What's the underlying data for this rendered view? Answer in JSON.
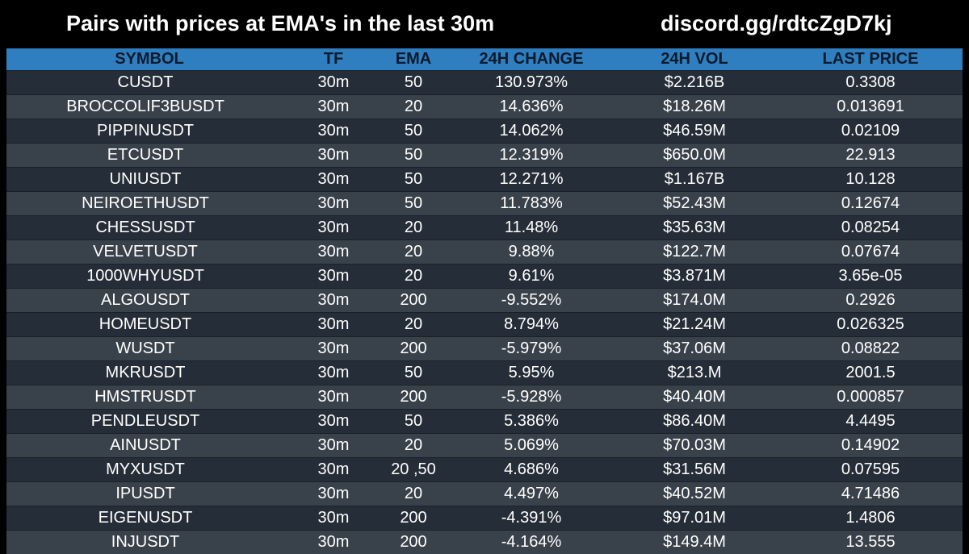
{
  "header": {
    "title": "Pairs with prices at EMA's in the last 30m",
    "link": "discord.gg/rdtcZgD7kj"
  },
  "colors": {
    "background": "#000000",
    "header_row": "#2f7fc0",
    "row_dark": "#252e38",
    "row_light": "#39424b",
    "text": "#ffffff"
  },
  "table": {
    "columns": [
      "SYMBOL",
      "TF",
      "EMA",
      "24H CHANGE",
      "24H VOL",
      "LAST PRICE"
    ],
    "rows": [
      [
        "CUSDT",
        "30m",
        "50",
        "130.973%",
        "$2.216B",
        "0.3308"
      ],
      [
        "BROCCOLIF3BUSDT",
        "30m",
        "20",
        "14.636%",
        "$18.26M",
        "0.013691"
      ],
      [
        "PIPPINUSDT",
        "30m",
        "50",
        "14.062%",
        "$46.59M",
        "0.02109"
      ],
      [
        "ETCUSDT",
        "30m",
        "50",
        "12.319%",
        "$650.0M",
        "22.913"
      ],
      [
        "UNIUSDT",
        "30m",
        "50",
        "12.271%",
        "$1.167B",
        "10.128"
      ],
      [
        "NEIROETHUSDT",
        "30m",
        "50",
        "11.783%",
        "$52.43M",
        "0.12674"
      ],
      [
        "CHESSUSDT",
        "30m",
        "20",
        "11.48%",
        "$35.63M",
        "0.08254"
      ],
      [
        "VELVETUSDT",
        "30m",
        "20",
        "9.88%",
        "$122.7M",
        "0.07674"
      ],
      [
        "1000WHYUSDT",
        "30m",
        "20",
        "9.61%",
        "$3.871M",
        "3.65e-05"
      ],
      [
        "ALGOUSDT",
        "30m",
        "200",
        "-9.552%",
        "$174.0M",
        "0.2926"
      ],
      [
        "HOMEUSDT",
        "30m",
        "20",
        "8.794%",
        "$21.24M",
        "0.026325"
      ],
      [
        "WUSDT",
        "30m",
        "200",
        "-5.979%",
        "$37.06M",
        "0.08822"
      ],
      [
        "MKRUSDT",
        "30m",
        "50",
        "5.95%",
        "$213.M",
        "2001.5"
      ],
      [
        "HMSTRUSDT",
        "30m",
        "200",
        "-5.928%",
        "$40.40M",
        "0.000857"
      ],
      [
        "PENDLEUSDT",
        "30m",
        "50",
        "5.386%",
        "$86.40M",
        "4.4495"
      ],
      [
        "AINUSDT",
        "30m",
        "20",
        "5.069%",
        "$70.03M",
        "0.14902"
      ],
      [
        "MYXUSDT",
        "30m",
        "20 ,50",
        "4.686%",
        "$31.56M",
        "0.07595"
      ],
      [
        "IPUSDT",
        "30m",
        "20",
        "4.497%",
        "$40.52M",
        "4.71486"
      ],
      [
        "EIGENUSDT",
        "30m",
        "200",
        "-4.391%",
        "$97.01M",
        "1.4806"
      ],
      [
        "INJUSDT",
        "30m",
        "200",
        "-4.164%",
        "$149.4M",
        "13.555"
      ]
    ]
  }
}
